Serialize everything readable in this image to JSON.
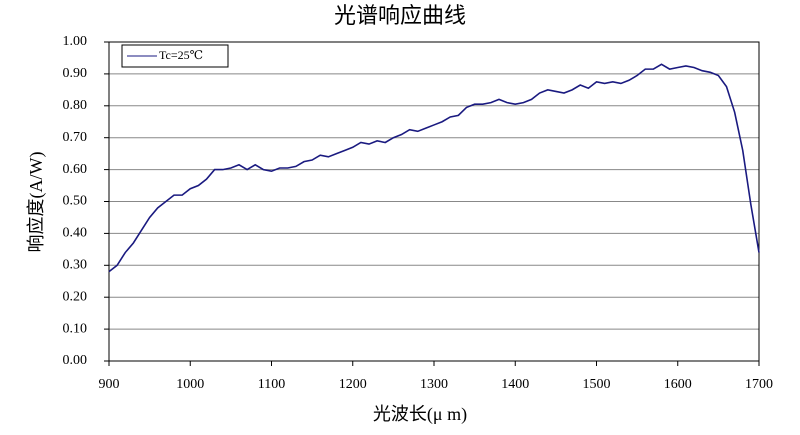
{
  "chart_data": {
    "type": "line",
    "title": "光谱响应曲线",
    "x_label": "光波长(μ m)",
    "y_label": "响应度(A/W)",
    "x": [
      900,
      910,
      920,
      930,
      940,
      950,
      960,
      970,
      980,
      990,
      1000,
      1010,
      1020,
      1030,
      1040,
      1050,
      1060,
      1070,
      1080,
      1090,
      1100,
      1110,
      1120,
      1130,
      1140,
      1150,
      1160,
      1170,
      1180,
      1190,
      1200,
      1210,
      1220,
      1230,
      1240,
      1250,
      1260,
      1270,
      1280,
      1290,
      1300,
      1310,
      1320,
      1330,
      1340,
      1350,
      1360,
      1370,
      1380,
      1390,
      1400,
      1410,
      1420,
      1430,
      1440,
      1450,
      1460,
      1470,
      1480,
      1490,
      1500,
      1510,
      1520,
      1530,
      1540,
      1550,
      1560,
      1570,
      1580,
      1590,
      1600,
      1610,
      1620,
      1630,
      1640,
      1650,
      1660,
      1670,
      1680,
      1690,
      1700
    ],
    "series": [
      {
        "name": "Tc=25℃",
        "color": "#1a1a80",
        "values": [
          0.28,
          0.3,
          0.34,
          0.37,
          0.41,
          0.45,
          0.48,
          0.5,
          0.52,
          0.52,
          0.54,
          0.55,
          0.57,
          0.6,
          0.6,
          0.605,
          0.615,
          0.6,
          0.615,
          0.6,
          0.595,
          0.605,
          0.605,
          0.61,
          0.625,
          0.63,
          0.645,
          0.64,
          0.65,
          0.66,
          0.67,
          0.685,
          0.68,
          0.69,
          0.685,
          0.7,
          0.71,
          0.725,
          0.72,
          0.73,
          0.74,
          0.75,
          0.765,
          0.77,
          0.795,
          0.805,
          0.805,
          0.81,
          0.82,
          0.81,
          0.805,
          0.81,
          0.82,
          0.84,
          0.85,
          0.845,
          0.84,
          0.85,
          0.865,
          0.855,
          0.875,
          0.87,
          0.875,
          0.87,
          0.88,
          0.895,
          0.915,
          0.915,
          0.93,
          0.915,
          0.92,
          0.925,
          0.92,
          0.91,
          0.905,
          0.895,
          0.86,
          0.78,
          0.66,
          0.49,
          0.34
        ]
      }
    ],
    "xlim": [
      900,
      1700
    ],
    "xticks": [
      900,
      1000,
      1100,
      1200,
      1300,
      1400,
      1500,
      1600,
      1700
    ],
    "ylim": [
      0,
      1
    ],
    "yticks": [
      {
        "value": 0,
        "label": "0.00"
      },
      {
        "value": 0.1,
        "label": "0.10"
      },
      {
        "value": 0.2,
        "label": "0.20"
      },
      {
        "value": 0.3,
        "label": "0.30"
      },
      {
        "value": 0.4,
        "label": "0.40"
      },
      {
        "value": 0.5,
        "label": "0.50"
      },
      {
        "value": 0.6,
        "label": "0.60"
      },
      {
        "value": 0.7,
        "label": "0.70"
      },
      {
        "value": 0.8,
        "label": "0.80"
      },
      {
        "value": 0.9,
        "label": "0.90"
      },
      {
        "value": 1,
        "label": "1.00"
      }
    ],
    "grid": true
  }
}
